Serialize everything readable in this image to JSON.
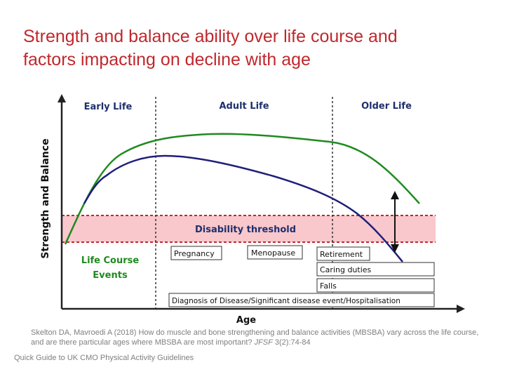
{
  "slide": {
    "title_line1": "Strength and balance ability over life course and",
    "title_line2": "factors impacting on decline with age"
  },
  "diagram": {
    "y_axis_label": "Strength and Balance",
    "x_axis_label": "Age",
    "phases": [
      "Early Life",
      "Adult Life",
      "Older Life"
    ],
    "threshold_label": "Disability threshold",
    "events_label_line1": "Life Course",
    "events_label_line2": "Events",
    "events": {
      "pregnancy": "Pregnancy",
      "menopause": "Menopause",
      "retirement": "Retirement",
      "caring": "Caring duties",
      "falls": "Falls",
      "diagnosis": "Diagnosis of Disease/Significant disease event/Hospitalisation"
    },
    "colors": {
      "green_curve": "#1f8a1f",
      "blue_curve": "#1f1f7a",
      "threshold_band": "#f8c8cc",
      "threshold_line": "#c0282d",
      "phase_text": "#1f2f6e",
      "events_text": "#1f8a1f"
    }
  },
  "citation": {
    "authors": "Skelton DA, Mavroedi A (2018) How do muscle and bone strengthening and balance activities (MBSBA) vary across the life course, and are there particular ages where MBSBA are most important?",
    "journal": "JFSF",
    "volume": "3(2):74-84"
  },
  "footer": "Quick Guide to UK CMO Physical Activity Guidelines"
}
